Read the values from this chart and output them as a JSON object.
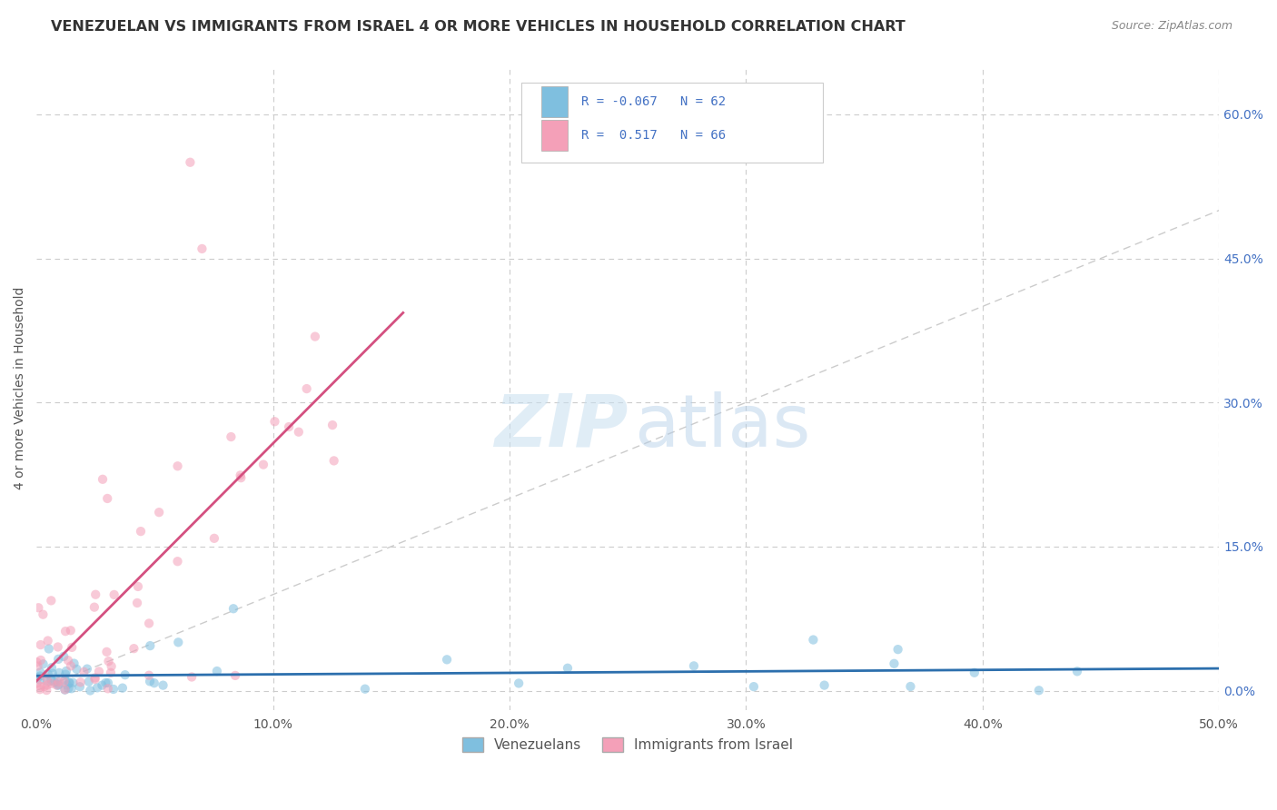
{
  "title": "VENEZUELAN VS IMMIGRANTS FROM ISRAEL 4 OR MORE VEHICLES IN HOUSEHOLD CORRELATION CHART",
  "source": "Source: ZipAtlas.com",
  "ylabel": "4 or more Vehicles in Household",
  "xlim": [
    0.0,
    0.5
  ],
  "ylim": [
    -0.02,
    0.65
  ],
  "xticks": [
    0.0,
    0.1,
    0.2,
    0.3,
    0.4,
    0.5
  ],
  "xticklabels": [
    "0.0%",
    "10.0%",
    "20.0%",
    "30.0%",
    "40.0%",
    "50.0%"
  ],
  "yticks_right": [
    0.0,
    0.15,
    0.3,
    0.45,
    0.6
  ],
  "yticklabels_right": [
    "0.0%",
    "15.0%",
    "30.0%",
    "45.0%",
    "60.0%"
  ],
  "legend_labels": [
    "Venezuelans",
    "Immigrants from Israel"
  ],
  "r_venezuelan": -0.067,
  "n_venezuelan": 62,
  "r_israel": 0.517,
  "n_israel": 66,
  "color_venezuelan": "#7fbfdf",
  "color_israel": "#f4a0b8",
  "line_color_venezuelan": "#2c6fad",
  "line_color_israel": "#d45080",
  "title_fontsize": 11.5,
  "axis_label_fontsize": 10,
  "tick_fontsize": 10,
  "watermark_zip": "ZIP",
  "watermark_atlas": "atlas",
  "background_color": "#ffffff",
  "grid_color": "#cccccc",
  "diag_color": "#cccccc"
}
